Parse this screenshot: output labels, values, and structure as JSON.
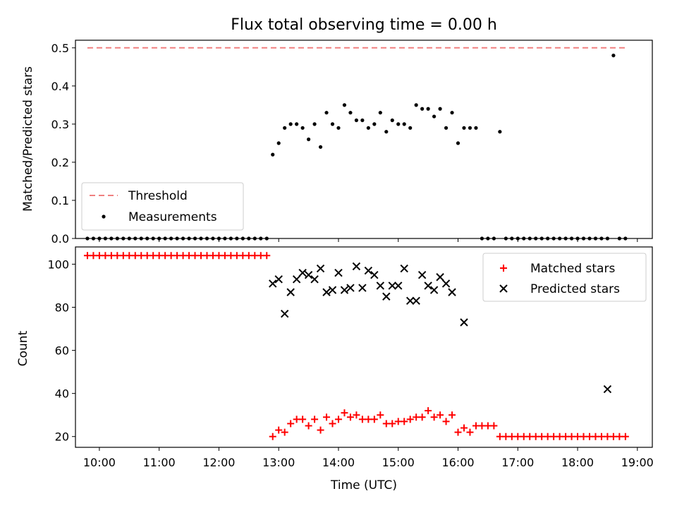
{
  "chart_data": [
    {
      "type": "scatter",
      "title": "Flux total observing time = 0.00 h",
      "xlabel": "",
      "ylabel": "Matched/Predicted stars",
      "ylim": [
        0,
        0.52
      ],
      "yticks": [
        0.0,
        0.1,
        0.2,
        0.3,
        0.4,
        0.5
      ],
      "ytick_labels": [
        "0.0",
        "0.1",
        "0.2",
        "0.3",
        "0.4",
        "0.5"
      ],
      "legend_position": "lower-left",
      "grid": false,
      "series": [
        {
          "name": "Threshold",
          "kind": "line",
          "style": "dashed",
          "color": "#f08080",
          "x": [
            "09:48",
            "18:48"
          ],
          "y": [
            0.5,
            0.5
          ]
        },
        {
          "name": "Measurements",
          "kind": "dot",
          "color": "#000000",
          "x": [
            "09:48",
            "09:54",
            "10:00",
            "10:06",
            "10:12",
            "10:18",
            "10:24",
            "10:30",
            "10:36",
            "10:42",
            "10:48",
            "10:54",
            "11:00",
            "11:06",
            "11:12",
            "11:18",
            "11:24",
            "11:30",
            "11:36",
            "11:42",
            "11:48",
            "11:54",
            "12:00",
            "12:06",
            "12:12",
            "12:18",
            "12:24",
            "12:30",
            "12:36",
            "12:42",
            "12:48",
            "12:54",
            "13:00",
            "13:06",
            "13:12",
            "13:18",
            "13:24",
            "13:30",
            "13:36",
            "13:42",
            "13:48",
            "13:54",
            "14:00",
            "14:06",
            "14:12",
            "14:18",
            "14:24",
            "14:30",
            "14:36",
            "14:42",
            "14:48",
            "14:54",
            "15:00",
            "15:06",
            "15:12",
            "15:18",
            "15:24",
            "15:30",
            "15:36",
            "15:42",
            "15:48",
            "15:54",
            "16:00",
            "16:06",
            "16:12",
            "16:18",
            "16:24",
            "16:30",
            "16:36",
            "16:42",
            "16:48",
            "16:54",
            "17:00",
            "17:06",
            "17:12",
            "17:18",
            "17:24",
            "17:30",
            "17:36",
            "17:42",
            "17:48",
            "17:54",
            "18:00",
            "18:06",
            "18:12",
            "18:18",
            "18:24",
            "18:30",
            "18:36",
            "18:42",
            "18:48"
          ],
          "y": [
            0,
            0,
            0,
            0,
            0,
            0,
            0,
            0,
            0,
            0,
            0,
            0,
            0,
            0,
            0,
            0,
            0,
            0,
            0,
            0,
            0,
            0,
            0,
            0,
            0,
            0,
            0,
            0,
            0,
            0,
            0,
            0.22,
            0.25,
            0.29,
            0.3,
            0.3,
            0.29,
            0.26,
            0.3,
            0.24,
            0.33,
            0.3,
            0.29,
            0.35,
            0.33,
            0.31,
            0.31,
            0.29,
            0.3,
            0.33,
            0.28,
            0.31,
            0.3,
            0.3,
            0.29,
            0.35,
            0.34,
            0.34,
            0.32,
            0.34,
            0.29,
            0.33,
            0.25,
            0.29,
            0.29,
            0.29,
            0,
            0,
            0,
            0.28,
            0,
            0,
            0,
            0,
            0,
            0,
            0,
            0,
            0,
            0,
            0,
            0,
            0,
            0,
            0,
            0,
            0,
            0,
            0.48,
            0,
            0
          ]
        }
      ]
    },
    {
      "type": "scatter",
      "title": "",
      "xlabel": "Time (UTC)",
      "ylabel": "Count",
      "ylim": [
        15,
        108
      ],
      "yticks": [
        20,
        40,
        60,
        80,
        100
      ],
      "ytick_labels": [
        "20",
        "40",
        "60",
        "80",
        "100"
      ],
      "x_range": [
        "09:36",
        "19:15"
      ],
      "xticks": [
        "10:00",
        "11:00",
        "12:00",
        "13:00",
        "14:00",
        "15:00",
        "16:00",
        "17:00",
        "18:00",
        "19:00"
      ],
      "legend_position": "upper-right",
      "grid": false,
      "series": [
        {
          "name": "Matched stars",
          "marker": "plus",
          "color": "#ff0000",
          "x": [
            "09:48",
            "09:54",
            "10:00",
            "10:06",
            "10:12",
            "10:18",
            "10:24",
            "10:30",
            "10:36",
            "10:42",
            "10:48",
            "10:54",
            "11:00",
            "11:06",
            "11:12",
            "11:18",
            "11:24",
            "11:30",
            "11:36",
            "11:42",
            "11:48",
            "11:54",
            "12:00",
            "12:06",
            "12:12",
            "12:18",
            "12:24",
            "12:30",
            "12:36",
            "12:42",
            "12:48",
            "12:54",
            "13:00",
            "13:06",
            "13:12",
            "13:18",
            "13:24",
            "13:30",
            "13:36",
            "13:42",
            "13:48",
            "13:54",
            "14:00",
            "14:06",
            "14:12",
            "14:18",
            "14:24",
            "14:30",
            "14:36",
            "14:42",
            "14:48",
            "14:54",
            "15:00",
            "15:06",
            "15:12",
            "15:18",
            "15:24",
            "15:30",
            "15:36",
            "15:42",
            "15:48",
            "15:54",
            "16:00",
            "16:06",
            "16:12",
            "16:18",
            "16:24",
            "16:30",
            "16:36",
            "16:42",
            "16:48",
            "16:54",
            "17:00",
            "17:06",
            "17:12",
            "17:18",
            "17:24",
            "17:30",
            "17:36",
            "17:42",
            "17:48",
            "17:54",
            "18:00",
            "18:06",
            "18:12",
            "18:18",
            "18:24",
            "18:30",
            "18:36",
            "18:42",
            "18:48"
          ],
          "y": [
            104,
            104,
            104,
            104,
            104,
            104,
            104,
            104,
            104,
            104,
            104,
            104,
            104,
            104,
            104,
            104,
            104,
            104,
            104,
            104,
            104,
            104,
            104,
            104,
            104,
            104,
            104,
            104,
            104,
            104,
            104,
            20,
            23,
            22,
            26,
            28,
            28,
            25,
            28,
            23,
            29,
            26,
            28,
            31,
            29,
            30,
            28,
            28,
            28,
            30,
            26,
            26,
            27,
            27,
            28,
            29,
            29,
            32,
            29,
            30,
            27,
            30,
            22,
            24,
            22,
            25,
            25,
            25,
            25,
            20,
            20,
            20,
            20,
            20,
            20,
            20,
            20,
            20,
            20,
            20,
            20,
            20,
            20,
            20,
            20,
            20,
            20,
            20,
            20,
            20,
            20
          ]
        },
        {
          "name": "Predicted stars",
          "marker": "x",
          "color": "#000000",
          "x": [
            "12:54",
            "13:00",
            "13:06",
            "13:12",
            "13:18",
            "13:24",
            "13:30",
            "13:36",
            "13:42",
            "13:48",
            "13:54",
            "14:00",
            "14:06",
            "14:12",
            "14:18",
            "14:24",
            "14:30",
            "14:36",
            "14:42",
            "14:48",
            "14:54",
            "15:00",
            "15:06",
            "15:12",
            "15:18",
            "15:24",
            "15:30",
            "15:36",
            "15:42",
            "15:48",
            "15:54",
            "16:06",
            "18:30"
          ],
          "y": [
            91,
            93,
            77,
            87,
            93,
            96,
            95,
            93,
            98,
            87,
            88,
            96,
            88,
            89,
            99,
            89,
            97,
            95,
            90,
            85,
            90,
            90,
            98,
            83,
            83,
            95,
            90,
            88,
            94,
            91,
            87,
            73,
            42
          ]
        }
      ]
    }
  ]
}
